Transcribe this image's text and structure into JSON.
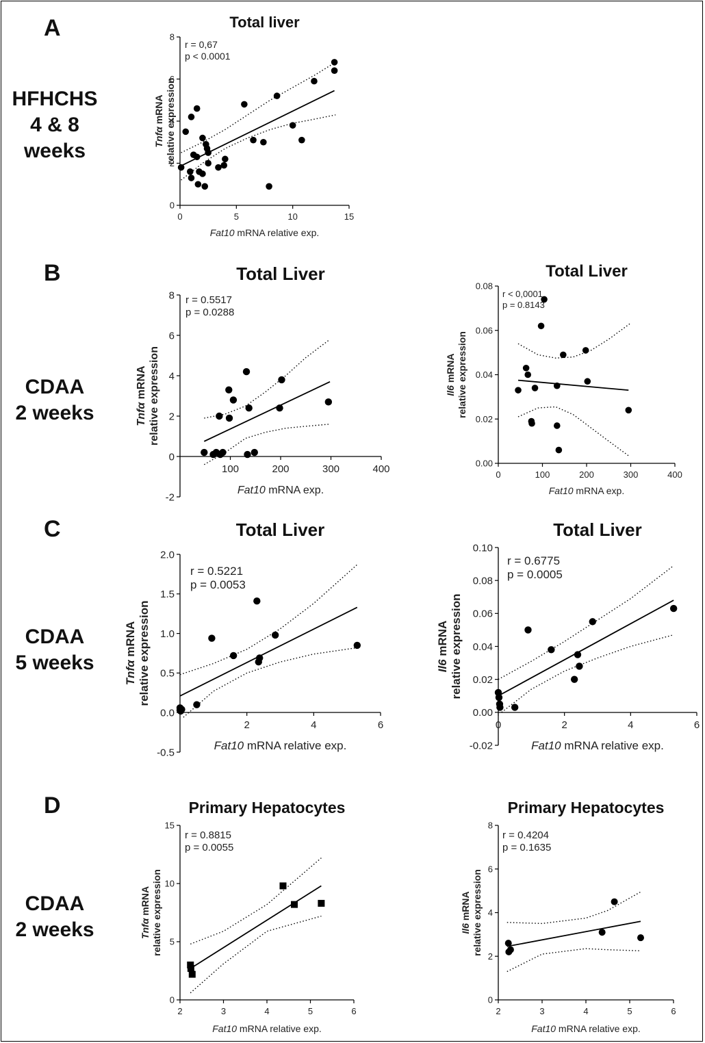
{
  "panel_letters": [
    "A",
    "B",
    "C",
    "D"
  ],
  "row_labels": [
    [
      "HFHCHS",
      "4 & 8",
      "weeks"
    ],
    [
      "CDAA",
      "2 weeks"
    ],
    [
      "CDAA",
      "5 weeks"
    ],
    [
      "CDAA",
      "2 weeks"
    ]
  ],
  "chart_data": [
    {
      "id": "A",
      "type": "scatter",
      "title": "Total liver",
      "xlabel_italic": "Fat10",
      "xlabel_rest": " mRNA relative exp.",
      "ylabel_italic": "Tnfα",
      "ylabel_rest": " mRNA",
      "ylabel_line2": "relative expression",
      "xlim": [
        0,
        15
      ],
      "ylim": [
        0,
        8
      ],
      "xticks": [
        0,
        5,
        10,
        15
      ],
      "yticks": [
        0,
        2,
        4,
        6,
        8
      ],
      "xtick_labels": [
        "0",
        "5",
        "10",
        "15"
      ],
      "ytick_labels": [
        "0",
        "2",
        "4",
        "6",
        "8"
      ],
      "stats": [
        "r = 0,67",
        "p < 0.0001"
      ],
      "marker": "circle",
      "points": [
        [
          0.1,
          1.8
        ],
        [
          0.5,
          3.5
        ],
        [
          0.9,
          1.6
        ],
        [
          1.0,
          4.2
        ],
        [
          1.0,
          1.3
        ],
        [
          1.2,
          2.4
        ],
        [
          1.5,
          4.6
        ],
        [
          1.5,
          2.3
        ],
        [
          1.6,
          1.0
        ],
        [
          1.7,
          1.6
        ],
        [
          2.0,
          1.5
        ],
        [
          2.0,
          3.2
        ],
        [
          2.2,
          0.9
        ],
        [
          2.3,
          2.9
        ],
        [
          2.4,
          2.7
        ],
        [
          2.5,
          2.5
        ],
        [
          2.5,
          2.0
        ],
        [
          3.4,
          1.8
        ],
        [
          3.9,
          1.9
        ],
        [
          4.0,
          2.2
        ],
        [
          5.7,
          4.8
        ],
        [
          6.5,
          3.1
        ],
        [
          7.4,
          3.0
        ],
        [
          7.9,
          0.9
        ],
        [
          8.6,
          5.2
        ],
        [
          10.0,
          3.8
        ],
        [
          10.8,
          3.1
        ],
        [
          11.9,
          5.9
        ],
        [
          13.7,
          6.4
        ],
        [
          13.7,
          6.8
        ]
      ],
      "fit": {
        "x": [
          0,
          13.7
        ],
        "y": [
          1.85,
          5.45
        ]
      },
      "ci_upper": [
        [
          0.1,
          2.5
        ],
        [
          2,
          3.0
        ],
        [
          4,
          3.6
        ],
        [
          6,
          4.3
        ],
        [
          8,
          5.0
        ],
        [
          10,
          5.6
        ],
        [
          12,
          6.2
        ],
        [
          13.8,
          6.8
        ]
      ],
      "ci_lower": [
        [
          0.1,
          1.2
        ],
        [
          2,
          2.0
        ],
        [
          4,
          2.7
        ],
        [
          6,
          3.2
        ],
        [
          8,
          3.6
        ],
        [
          10,
          3.9
        ],
        [
          12,
          4.1
        ],
        [
          13.8,
          4.3
        ]
      ]
    },
    {
      "id": "B1",
      "type": "scatter",
      "title": "Total Liver",
      "xlabel_italic": "Fat10",
      "xlabel_rest": " mRNA exp.",
      "ylabel_italic": "Tnfα",
      "ylabel_rest": " mRNA",
      "ylabel_line2": "relative expression",
      "xlim": [
        0,
        400
      ],
      "ylim": [
        -2,
        8
      ],
      "xticks": [
        100,
        200,
        300,
        400
      ],
      "yticks": [
        -2,
        0,
        2,
        4,
        6,
        8
      ],
      "xtick_labels": [
        "100",
        "200",
        "300",
        "400"
      ],
      "ytick_labels": [
        "-2",
        "0",
        "2",
        "4",
        "6",
        "8"
      ],
      "stats": [
        "r = 0.5517",
        "p = 0.0288"
      ],
      "marker": "circle",
      "points": [
        [
          48,
          0.2
        ],
        [
          66,
          0.1
        ],
        [
          72,
          0.2
        ],
        [
          78,
          2.0
        ],
        [
          80,
          0.1
        ],
        [
          85,
          0.2
        ],
        [
          97,
          3.3
        ],
        [
          98,
          1.9
        ],
        [
          106,
          2.8
        ],
        [
          132,
          4.2
        ],
        [
          134,
          0.1
        ],
        [
          137,
          2.4
        ],
        [
          148,
          0.2
        ],
        [
          198,
          2.4
        ],
        [
          202,
          3.8
        ],
        [
          295,
          2.7
        ]
      ],
      "fit": {
        "x": [
          48,
          298
        ],
        "y": [
          0.75,
          3.7
        ]
      },
      "ci_upper": [
        [
          48,
          1.9
        ],
        [
          90,
          2.1
        ],
        [
          130,
          2.5
        ],
        [
          170,
          3.2
        ],
        [
          210,
          4.0
        ],
        [
          250,
          4.9
        ],
        [
          298,
          5.8
        ]
      ],
      "ci_lower": [
        [
          48,
          -0.4
        ],
        [
          90,
          0.2
        ],
        [
          130,
          0.9
        ],
        [
          170,
          1.2
        ],
        [
          210,
          1.4
        ],
        [
          250,
          1.5
        ],
        [
          298,
          1.6
        ]
      ]
    },
    {
      "id": "B2",
      "type": "scatter",
      "title": "Total Liver",
      "xlabel_italic": "Fat10",
      "xlabel_rest": " mRNA exp.",
      "ylabel_italic": "Il6",
      "ylabel_rest": " mRNA",
      "ylabel_line2": "relative expression",
      "xlim": [
        0,
        400
      ],
      "ylim": [
        0,
        0.08
      ],
      "xticks": [
        0,
        100,
        200,
        300,
        400
      ],
      "yticks": [
        0,
        0.02,
        0.04,
        0.06,
        0.08
      ],
      "xtick_labels": [
        "0",
        "100",
        "200",
        "300",
        "400"
      ],
      "ytick_labels": [
        "0.00",
        "0.02",
        "0.04",
        "0.06",
        "0.08"
      ],
      "stats": [
        "r < 0,0001",
        "p = 0.8143"
      ],
      "marker": "circle",
      "points": [
        [
          45,
          0.033
        ],
        [
          63,
          0.043
        ],
        [
          67,
          0.04
        ],
        [
          75,
          0.019
        ],
        [
          76,
          0.018
        ],
        [
          83,
          0.034
        ],
        [
          97,
          0.062
        ],
        [
          104,
          0.074
        ],
        [
          133,
          0.035
        ],
        [
          133,
          0.017
        ],
        [
          137,
          0.006
        ],
        [
          147,
          0.049
        ],
        [
          198,
          0.051
        ],
        [
          202,
          0.037
        ],
        [
          295,
          0.024
        ]
      ],
      "fit": {
        "x": [
          45,
          295
        ],
        "y": [
          0.0375,
          0.033
        ]
      },
      "ci_upper": [
        [
          45,
          0.054
        ],
        [
          90,
          0.049
        ],
        [
          130,
          0.0475
        ],
        [
          170,
          0.048
        ],
        [
          210,
          0.051
        ],
        [
          250,
          0.056
        ],
        [
          298,
          0.063
        ]
      ],
      "ci_lower": [
        [
          45,
          0.021
        ],
        [
          90,
          0.025
        ],
        [
          130,
          0.0255
        ],
        [
          170,
          0.022
        ],
        [
          210,
          0.016
        ],
        [
          250,
          0.01
        ],
        [
          298,
          0.003
        ]
      ]
    },
    {
      "id": "C1",
      "type": "scatter",
      "title": "Total Liver",
      "xlabel_italic": "Fat10",
      "xlabel_rest": " mRNA relative exp.",
      "ylabel_italic": "Tnfα",
      "ylabel_rest": " mRNA",
      "ylabel_line2": "relative expression",
      "xlim": [
        0,
        6
      ],
      "ylim": [
        -0.5,
        2.0
      ],
      "xticks": [
        2,
        4,
        6
      ],
      "yticks": [
        -0.5,
        0,
        0.5,
        1.0,
        1.5,
        2.0
      ],
      "xtick_labels": [
        "2",
        "4",
        "6"
      ],
      "ytick_labels": [
        "-0.5",
        "0.0",
        "0.5",
        "1.0",
        "1.5",
        "2.0"
      ],
      "stats": [
        "r = 0.5221",
        "p = 0.0053"
      ],
      "marker": "circle",
      "points": [
        [
          0,
          0.03
        ],
        [
          0,
          0.06
        ],
        [
          0.02,
          0.02
        ],
        [
          0.05,
          0.04
        ],
        [
          0.5,
          0.1
        ],
        [
          0.95,
          0.94
        ],
        [
          1.6,
          0.72
        ],
        [
          2.3,
          1.41
        ],
        [
          2.35,
          0.64
        ],
        [
          2.38,
          0.69
        ],
        [
          2.85,
          0.98
        ],
        [
          5.3,
          0.85
        ]
      ],
      "fit": {
        "x": [
          0,
          5.3
        ],
        "y": [
          0.21,
          1.33
        ]
      },
      "ci_upper": [
        [
          0,
          0.48
        ],
        [
          1,
          0.62
        ],
        [
          2,
          0.8
        ],
        [
          3,
          1.06
        ],
        [
          4,
          1.38
        ],
        [
          5.3,
          1.87
        ]
      ],
      "ci_lower": [
        [
          0.1,
          -0.06
        ],
        [
          1,
          0.27
        ],
        [
          2,
          0.5
        ],
        [
          3,
          0.64
        ],
        [
          4,
          0.74
        ],
        [
          5.3,
          0.82
        ]
      ]
    },
    {
      "id": "C2",
      "type": "scatter",
      "title": "Total Liver",
      "xlabel_italic": "Fat10",
      "xlabel_rest": " mRNA relative exp.",
      "ylabel_italic": "Il6",
      "ylabel_rest": " mRNA",
      "ylabel_line2": "relative expression",
      "xlim": [
        0,
        6
      ],
      "ylim": [
        -0.02,
        0.1
      ],
      "xticks": [
        0,
        2,
        4,
        6
      ],
      "yticks": [
        -0.02,
        0,
        0.02,
        0.04,
        0.06,
        0.08,
        0.1
      ],
      "xtick_labels": [
        "0",
        "2",
        "4",
        "6"
      ],
      "ytick_labels": [
        "-0.02",
        "0.00",
        "0.02",
        "0.04",
        "0.06",
        "0.08",
        "0.10"
      ],
      "stats": [
        "r = 0.6775",
        "p = 0.0005"
      ],
      "marker": "circle",
      "points": [
        [
          0,
          0.012
        ],
        [
          0.02,
          0.009
        ],
        [
          0.04,
          0.005
        ],
        [
          0.05,
          0.003
        ],
        [
          0.5,
          0.003
        ],
        [
          0.9,
          0.05
        ],
        [
          1.6,
          0.038
        ],
        [
          2.3,
          0.02
        ],
        [
          2.4,
          0.035
        ],
        [
          2.45,
          0.028
        ],
        [
          2.85,
          0.055
        ],
        [
          5.3,
          0.063
        ]
      ],
      "fit": {
        "x": [
          0,
          5.3
        ],
        "y": [
          0.01,
          0.068
        ]
      },
      "ci_upper": [
        [
          0,
          0.02
        ],
        [
          1,
          0.031
        ],
        [
          2,
          0.043
        ],
        [
          3,
          0.056
        ],
        [
          4,
          0.069
        ],
        [
          5.3,
          0.089
        ]
      ],
      "ci_lower": [
        [
          0.1,
          0.0
        ],
        [
          1,
          0.014
        ],
        [
          2,
          0.025
        ],
        [
          3,
          0.033
        ],
        [
          4,
          0.04
        ],
        [
          5.3,
          0.047
        ]
      ]
    },
    {
      "id": "D1",
      "type": "scatter",
      "title": "Primary Hepatocytes",
      "xlabel_italic": "Fat10",
      "xlabel_rest": " mRNA relative exp.",
      "ylabel_italic": "Tnfα",
      "ylabel_rest": " mRNA",
      "ylabel_line2": "relative expression",
      "xlim": [
        2,
        6
      ],
      "ylim": [
        0,
        15
      ],
      "xticks": [
        2,
        3,
        4,
        5,
        6
      ],
      "yticks": [
        0,
        5,
        10,
        15
      ],
      "xtick_labels": [
        "2",
        "3",
        "4",
        "5",
        "6"
      ],
      "ytick_labels": [
        "0",
        "5",
        "10",
        "15"
      ],
      "stats": [
        "r = 0.8815",
        "p = 0.0055"
      ],
      "marker": "square",
      "points": [
        [
          2.24,
          3.0
        ],
        [
          2.25,
          2.7
        ],
        [
          2.28,
          2.2
        ],
        [
          4.37,
          9.8
        ],
        [
          4.63,
          8.2
        ],
        [
          5.25,
          8.3
        ]
      ],
      "fit": {
        "x": [
          2.24,
          5.25
        ],
        "y": [
          2.7,
          9.8
        ]
      },
      "ci_upper": [
        [
          2.24,
          4.8
        ],
        [
          3,
          5.9
        ],
        [
          4,
          8.2
        ],
        [
          5.25,
          12.2
        ]
      ],
      "ci_lower": [
        [
          2.24,
          0.6
        ],
        [
          3,
          3.1
        ],
        [
          4,
          5.9
        ],
        [
          5.25,
          7.2
        ]
      ]
    },
    {
      "id": "D2",
      "type": "scatter",
      "title": "Primary Hepatocytes",
      "xlabel_italic": "Fat10",
      "xlabel_rest": " mRNA relative exp.",
      "ylabel_italic": "Il6",
      "ylabel_rest": " mRNA",
      "ylabel_line2": "relative expression",
      "xlim": [
        2,
        6
      ],
      "ylim": [
        0,
        8
      ],
      "xticks": [
        2,
        3,
        4,
        5,
        6
      ],
      "yticks": [
        0,
        2,
        4,
        6,
        8
      ],
      "xtick_labels": [
        "2",
        "3",
        "4",
        "5",
        "6"
      ],
      "ytick_labels": [
        "0",
        "2",
        "4",
        "6",
        "8"
      ],
      "stats": [
        "r = 0.4204",
        "p = 0.1635"
      ],
      "marker": "circle",
      "points": [
        [
          2.23,
          2.6
        ],
        [
          2.24,
          2.2
        ],
        [
          2.28,
          2.3
        ],
        [
          4.37,
          3.1
        ],
        [
          4.65,
          4.5
        ],
        [
          5.25,
          2.85
        ]
      ],
      "fit": {
        "x": [
          2.2,
          5.25
        ],
        "y": [
          2.45,
          3.6
        ]
      },
      "ci_upper": [
        [
          2.2,
          3.55
        ],
        [
          3,
          3.5
        ],
        [
          4,
          3.75
        ],
        [
          4.5,
          4.1
        ],
        [
          5.25,
          4.95
        ]
      ],
      "ci_lower": [
        [
          2.2,
          1.3
        ],
        [
          3,
          2.1
        ],
        [
          4,
          2.35
        ],
        [
          4.5,
          2.3
        ],
        [
          5.25,
          2.25
        ]
      ]
    }
  ]
}
